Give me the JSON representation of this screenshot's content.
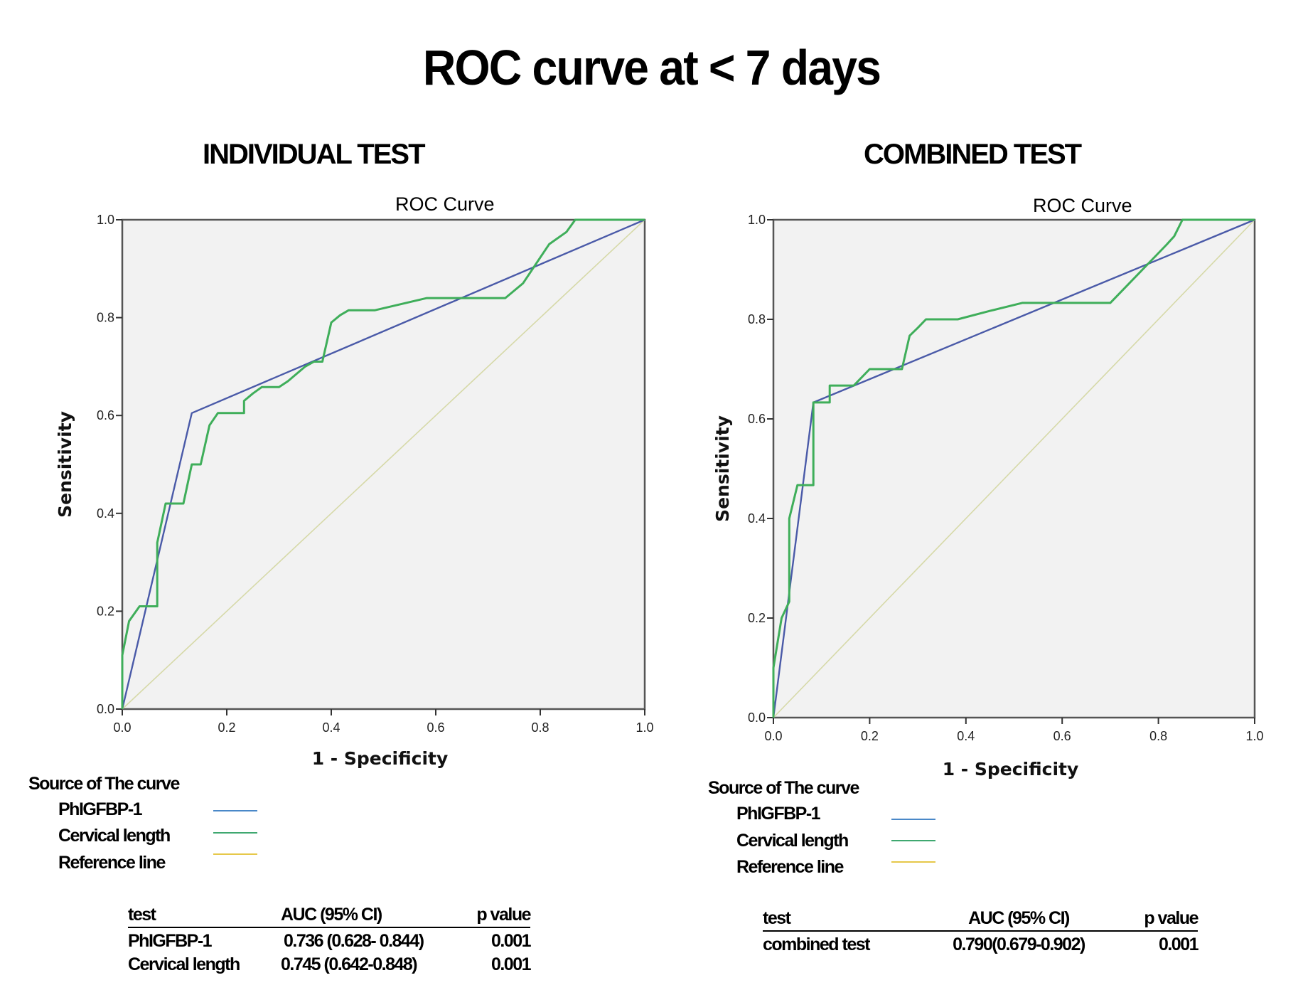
{
  "title": "ROC curve at < 7 days",
  "colors": {
    "phigfbp": "#4a5aa8",
    "cervical": "#3fae5a",
    "reference": "#d6d9a8",
    "legend_phigfbp": "#4a88c8",
    "legend_cervical": "#3fa870",
    "legend_reference": "#e6c84a",
    "plot_bg": "#f2f2f2"
  },
  "panels": [
    {
      "heading": "INDIVIDUAL TEST",
      "legend": {
        "title": "Source of The curve",
        "items": [
          {
            "label": "PhIGFBP-1",
            "color_key": "legend_phigfbp"
          },
          {
            "label": "Cervical length",
            "color_key": "legend_cervical"
          },
          {
            "label": "Reference line",
            "color_key": "legend_reference"
          }
        ]
      },
      "table": {
        "headers": [
          "test",
          "AUC (95% CI)",
          "p value"
        ],
        "rows": [
          [
            "PhIGFBP-1",
            "0.736 (0.628- 0.844)",
            "0.001"
          ],
          [
            "Cervical length",
            "0.745 (0.642-0.848)",
            "0.001"
          ]
        ]
      }
    },
    {
      "heading": "COMBINED TEST",
      "legend": {
        "title": "Source of The curve",
        "items": [
          {
            "label": "PhIGFBP-1",
            "color_key": "legend_phigfbp"
          },
          {
            "label": "Cervical length",
            "color_key": "legend_cervical"
          },
          {
            "label": "Reference line",
            "color_key": "legend_reference"
          }
        ]
      },
      "table": {
        "headers": [
          "test",
          "AUC (95% CI)",
          "p value"
        ],
        "rows": [
          [
            "combined test",
            "0.790(0.679-0.902)",
            "0.001"
          ]
        ]
      }
    }
  ],
  "chart_data": [
    {
      "type": "line",
      "title": "ROC Curve",
      "xlabel": "1 - Specificity",
      "ylabel": "Sensitivity",
      "xlim": [
        0,
        1
      ],
      "ylim": [
        0,
        1
      ],
      "xticks": [
        "0.0",
        "0.2",
        "0.4",
        "0.6",
        "0.8",
        "1.0"
      ],
      "yticks": [
        "0.0",
        "0.2",
        "0.4",
        "0.6",
        "0.8",
        "1.0"
      ],
      "grid": false,
      "series": [
        {
          "name": "PhIGFBP-1",
          "color_key": "phigfbp",
          "points": [
            [
              0,
              0
            ],
            [
              0.133,
              0.605
            ],
            [
              1,
              1
            ]
          ]
        },
        {
          "name": "Cervical length",
          "color_key": "cervical",
          "points": [
            [
              0,
              0
            ],
            [
              0,
              0.11
            ],
            [
              0.013,
              0.18
            ],
            [
              0.033,
              0.21
            ],
            [
              0.067,
              0.21
            ],
            [
              0.067,
              0.34
            ],
            [
              0.083,
              0.42
            ],
            [
              0.117,
              0.42
            ],
            [
              0.133,
              0.5
            ],
            [
              0.15,
              0.5
            ],
            [
              0.167,
              0.58
            ],
            [
              0.183,
              0.605
            ],
            [
              0.233,
              0.605
            ],
            [
              0.233,
              0.63
            ],
            [
              0.25,
              0.645
            ],
            [
              0.267,
              0.658
            ],
            [
              0.3,
              0.658
            ],
            [
              0.317,
              0.67
            ],
            [
              0.35,
              0.7
            ],
            [
              0.367,
              0.71
            ],
            [
              0.383,
              0.71
            ],
            [
              0.4,
              0.79
            ],
            [
              0.417,
              0.805
            ],
            [
              0.433,
              0.815
            ],
            [
              0.483,
              0.815
            ],
            [
              0.583,
              0.84
            ],
            [
              0.733,
              0.84
            ],
            [
              0.767,
              0.87
            ],
            [
              0.817,
              0.95
            ],
            [
              0.85,
              0.975
            ],
            [
              0.867,
              1.0
            ],
            [
              1,
              1
            ]
          ]
        },
        {
          "name": "Reference line",
          "color_key": "reference",
          "points": [
            [
              0,
              0
            ],
            [
              1,
              1
            ]
          ]
        }
      ]
    },
    {
      "type": "line",
      "title": "ROC Curve",
      "xlabel": "1 - Specificity",
      "ylabel": "Sensitivity",
      "xlim": [
        0,
        1
      ],
      "ylim": [
        0,
        1
      ],
      "xticks": [
        "0.0",
        "0.2",
        "0.4",
        "0.6",
        "0.8",
        "1.0"
      ],
      "yticks": [
        "0.0",
        "0.2",
        "0.4",
        "0.6",
        "0.8",
        "1.0"
      ],
      "grid": false,
      "series": [
        {
          "name": "PhIGFBP-1",
          "color_key": "phigfbp",
          "points": [
            [
              0,
              0
            ],
            [
              0.083,
              0.633
            ],
            [
              1,
              1
            ]
          ]
        },
        {
          "name": "Cervical length",
          "color_key": "cervical",
          "points": [
            [
              0,
              0
            ],
            [
              0,
              0.1
            ],
            [
              0.017,
              0.2
            ],
            [
              0.033,
              0.233
            ],
            [
              0.033,
              0.4
            ],
            [
              0.05,
              0.467
            ],
            [
              0.083,
              0.467
            ],
            [
              0.083,
              0.633
            ],
            [
              0.117,
              0.633
            ],
            [
              0.117,
              0.667
            ],
            [
              0.167,
              0.667
            ],
            [
              0.2,
              0.7
            ],
            [
              0.267,
              0.7
            ],
            [
              0.283,
              0.767
            ],
            [
              0.3,
              0.783
            ],
            [
              0.317,
              0.8
            ],
            [
              0.383,
              0.8
            ],
            [
              0.45,
              0.817
            ],
            [
              0.517,
              0.833
            ],
            [
              0.7,
              0.833
            ],
            [
              0.767,
              0.9
            ],
            [
              0.817,
              0.95
            ],
            [
              0.833,
              0.967
            ],
            [
              0.85,
              1.0
            ],
            [
              1,
              1
            ]
          ]
        },
        {
          "name": "Reference line",
          "color_key": "reference",
          "points": [
            [
              0,
              0
            ],
            [
              1,
              1
            ]
          ]
        }
      ]
    }
  ]
}
